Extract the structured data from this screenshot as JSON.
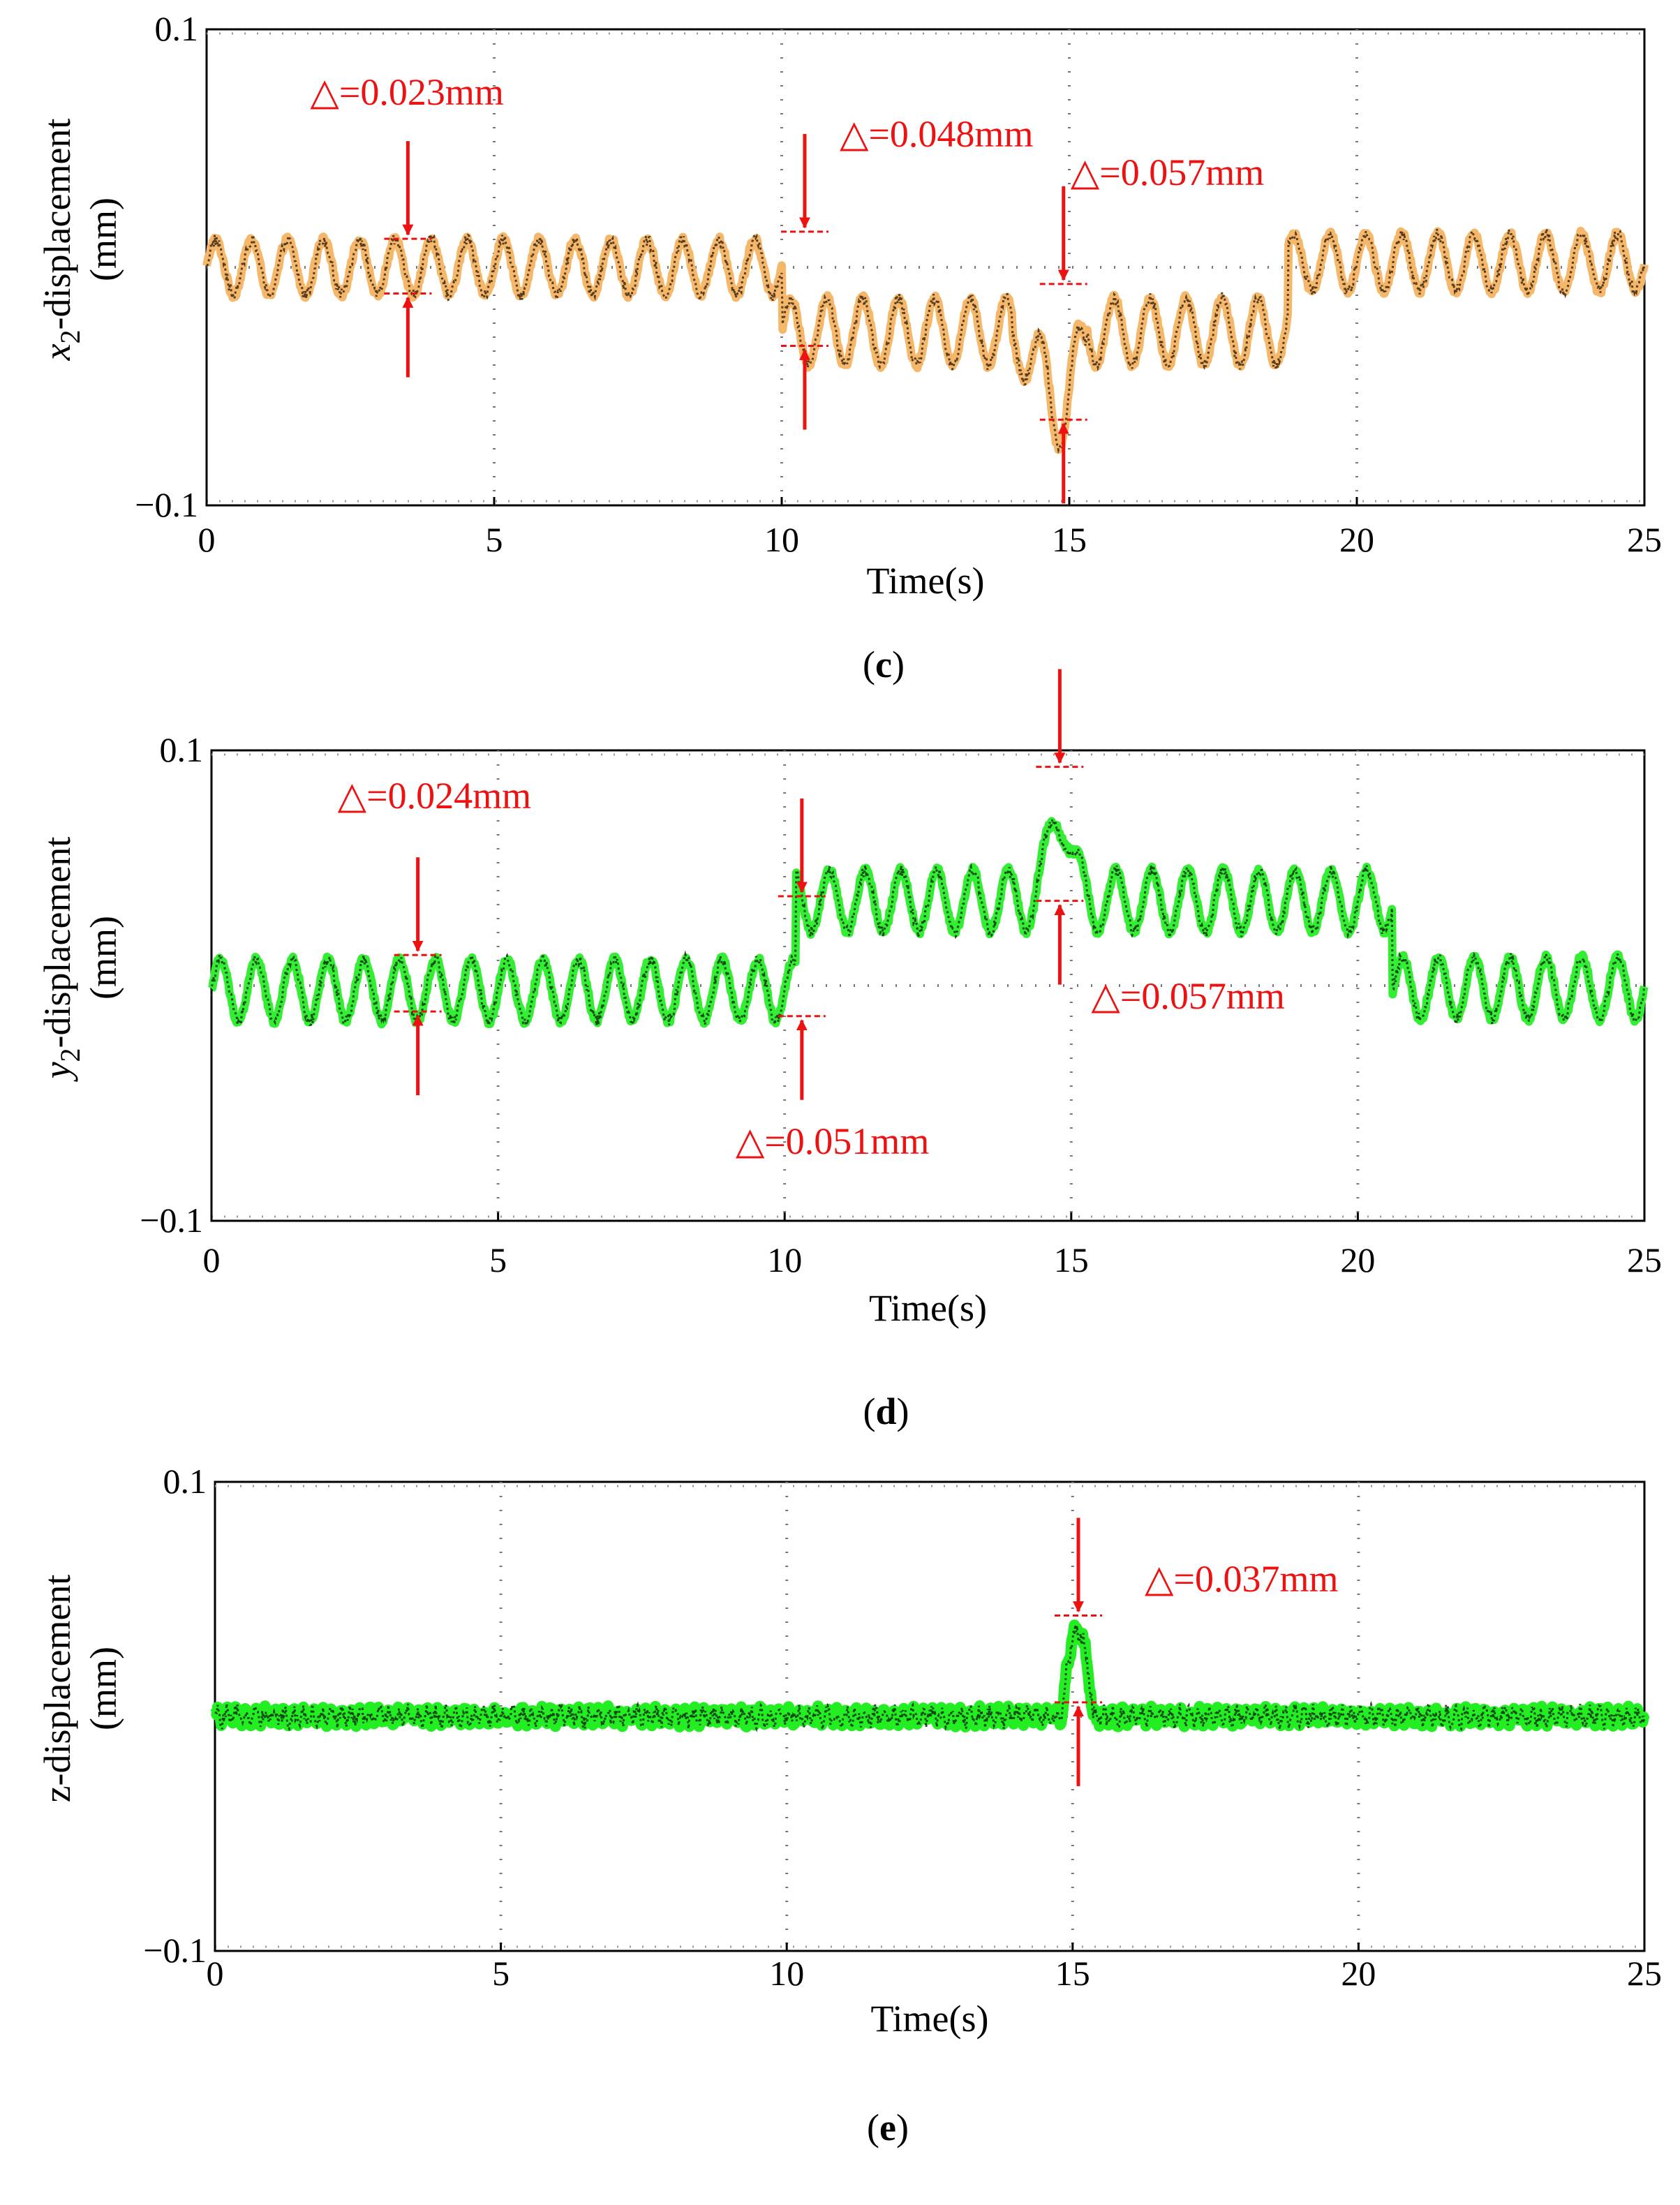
{
  "chart_data": [
    {
      "type": "line",
      "panel_label": "c",
      "ylabel_var": "x",
      "ylabel_sub": "2",
      "ylabel_rest": "-displacement",
      "ylabel_unit": "(mm)",
      "xlabel": "Time(s)",
      "xlim": [
        0,
        25
      ],
      "ylim": [
        -0.1,
        0.1
      ],
      "xticks": [
        0,
        5,
        10,
        15,
        20,
        25
      ],
      "xtick_labels": [
        "0",
        "5",
        "10",
        "15",
        "20",
        "25"
      ],
      "ytick_labels": [
        "0.1",
        "−0.1"
      ],
      "grid": true,
      "series": [
        {
          "name": "x2 displacement",
          "style": "orange band with dark dotted overlay",
          "segments": [
            {
              "t0": 0,
              "t1": 10.0,
              "baseline": 0.0,
              "amp": 0.0115,
              "freq": 1.6
            },
            {
              "t0": 10.0,
              "t1": 14.0,
              "baseline": -0.027,
              "amp": 0.014,
              "freq": 1.6
            },
            {
              "t0": 14.0,
              "t1": 15.3,
              "baseline": -0.034,
              "amp": 0.013,
              "freq": 1.6
            },
            {
              "t0": 15.3,
              "t1": 18.8,
              "baseline": -0.027,
              "amp": 0.014,
              "freq": 1.6
            },
            {
              "t0": 18.8,
              "t1": 25.0,
              "baseline": 0.002,
              "amp": 0.012,
              "freq": 1.6
            }
          ],
          "dip": {
            "t": 14.8,
            "depth": 0.03,
            "width": 0.25
          }
        }
      ],
      "annotations": [
        {
          "label": "△=0.023mm",
          "t": 3.5,
          "top": 0.012,
          "bottom": -0.011
        },
        {
          "label": "△=0.048mm",
          "t": 10.4,
          "top": 0.015,
          "bottom": -0.033
        },
        {
          "label": "△=0.057mm",
          "t": 14.9,
          "top": -0.007,
          "bottom": -0.064
        }
      ],
      "colors": {
        "band": "#f5b86a",
        "overlay": "#3a2410",
        "annotation": "#ee1111"
      }
    },
    {
      "type": "line",
      "panel_label": "d",
      "ylabel_var": "y",
      "ylabel_sub": "2",
      "ylabel_rest": "-displacement",
      "ylabel_unit": "(mm)",
      "xlabel": "Time(s)",
      "xlim": [
        0,
        25
      ],
      "ylim": [
        -0.1,
        0.1
      ],
      "xticks": [
        0,
        5,
        10,
        15,
        20,
        25
      ],
      "xtick_labels": [
        "0",
        "5",
        "10",
        "15",
        "20",
        "25"
      ],
      "ytick_labels": [
        "0.1",
        "−0.1"
      ],
      "grid": true,
      "series": [
        {
          "name": "y2 displacement",
          "style": "green band with dark dotted overlay",
          "segments": [
            {
              "t0": 0,
              "t1": 10.2,
              "baseline": -0.002,
              "amp": 0.013,
              "freq": 1.6
            },
            {
              "t0": 10.2,
              "t1": 20.6,
              "baseline": 0.036,
              "amp": 0.013,
              "freq": 1.6
            },
            {
              "t0": 20.6,
              "t1": 25.0,
              "baseline": -0.001,
              "amp": 0.013,
              "freq": 1.6
            }
          ],
          "peak": {
            "t": 14.8,
            "height": 0.04,
            "width": 0.25
          }
        }
      ],
      "annotations": [
        {
          "label": "△=0.024mm",
          "t": 3.6,
          "top": 0.013,
          "bottom": -0.011
        },
        {
          "label": "△=0.051mm",
          "t": 10.3,
          "top": 0.038,
          "bottom": -0.013
        },
        {
          "label": "△=0.057mm",
          "t": 14.8,
          "top": 0.093,
          "bottom": 0.036
        }
      ],
      "colors": {
        "band": "#33ee33",
        "overlay": "#0b2a0b",
        "annotation": "#ee1111"
      }
    },
    {
      "type": "line",
      "panel_label": "e",
      "ylabel_var": "",
      "ylabel_sub": "",
      "ylabel_rest": "z-displacement",
      "ylabel_unit": "(mm)",
      "xlabel": "Time(s)",
      "xlim": [
        0,
        25
      ],
      "ylim": [
        -0.1,
        0.1
      ],
      "xticks": [
        0,
        5,
        10,
        15,
        20,
        25
      ],
      "xtick_labels": [
        "0",
        "5",
        "10",
        "15",
        "20",
        "25"
      ],
      "ytick_labels": [
        "0.1",
        "−0.1"
      ],
      "grid": true,
      "series": [
        {
          "name": "z displacement",
          "style": "green band with dark dotted overlay",
          "segments": [
            {
              "t0": 0,
              "t1": 25.0,
              "baseline": 0.0,
              "amp": 0.0025,
              "freq": 6.0
            }
          ],
          "pulse": {
            "t0": 14.82,
            "t1": 15.35,
            "height": 0.037
          }
        }
      ],
      "annotations": [
        {
          "label": "△=0.037mm",
          "t": 15.1,
          "top": 0.043,
          "bottom": 0.006
        }
      ],
      "colors": {
        "band": "#22ee22",
        "overlay": "#0b2a0b",
        "annotation": "#ee1111"
      }
    }
  ]
}
